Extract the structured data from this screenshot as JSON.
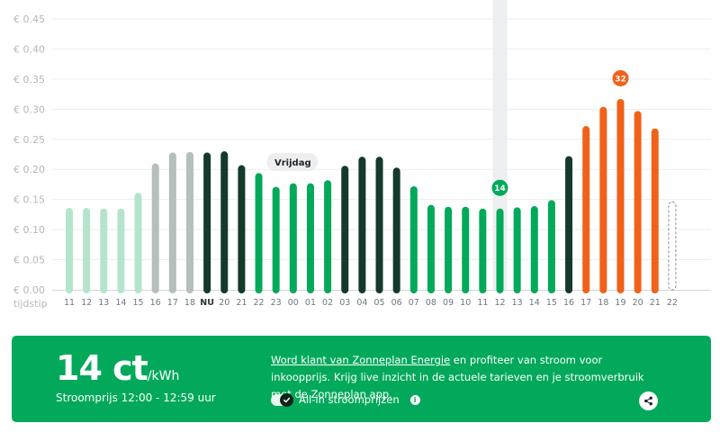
{
  "chart_data": {
    "type": "bar",
    "ylabel": "tijdstip",
    "ylim": [
      0,
      0.45
    ],
    "y_ticks": [
      "€ 0.45",
      "€ 0.40",
      "€ 0.35",
      "€ 0.30",
      "€ 0.25",
      "€ 0.20",
      "€ 0.15",
      "€ 0.10",
      "€ 0.05",
      "€ 0.00"
    ],
    "categories": [
      "11",
      "12",
      "13",
      "14",
      "15",
      "16",
      "17",
      "18",
      "NU",
      "20",
      "21",
      "22",
      "23",
      "00",
      "01",
      "02",
      "03",
      "04",
      "05",
      "06",
      "07",
      "08",
      "09",
      "10",
      "11",
      "12",
      "13",
      "14",
      "15",
      "16",
      "17",
      "18",
      "19",
      "20",
      "21",
      "22"
    ],
    "values": [
      0.136,
      0.136,
      0.135,
      0.135,
      0.161,
      0.21,
      0.228,
      0.229,
      0.228,
      0.23,
      0.207,
      0.194,
      0.171,
      0.177,
      0.177,
      0.182,
      0.206,
      0.221,
      0.221,
      0.203,
      0.172,
      0.141,
      0.138,
      0.138,
      0.135,
      0.135,
      0.137,
      0.139,
      0.149,
      0.222,
      0.272,
      0.304,
      0.317,
      0.297,
      0.268,
      0.146
    ],
    "bar_states": [
      "past",
      "past",
      "past",
      "past",
      "past",
      "past-high",
      "past-high",
      "past-high",
      "current",
      "high",
      "high",
      "normal",
      "normal",
      "normal",
      "normal",
      "normal",
      "high",
      "high",
      "high",
      "high",
      "normal",
      "normal",
      "normal",
      "normal",
      "normal",
      "selected",
      "normal",
      "normal",
      "normal",
      "high",
      "peak",
      "peak",
      "peak",
      "peak",
      "peak",
      "unknown"
    ],
    "day_marker": {
      "label": "Vrijdag",
      "category_index": 13
    },
    "selected": {
      "category_index": 25,
      "label": "14"
    },
    "peak_marker": {
      "category_index": 32,
      "label": "32"
    },
    "colors": {
      "past": "#b4e5cc",
      "past-high": "#b5bfbb",
      "current": "#143a2c",
      "high": "#143a2c",
      "normal": "#02a95a",
      "selected": "#02a95a",
      "peak": "#f06219",
      "unknown": "#ffffff",
      "highlight_band": "#eeeff0",
      "gridline": "#eceef0"
    }
  },
  "panel": {
    "price_value": "14 ct",
    "price_unit": "/kWh",
    "subtitle": "Stroomprijs 12:00 - 12:59 uur",
    "promo_link": "Word klant van Zonneplan Energie",
    "promo_rest": " en profiteer van stroom voor inkoopprijs. Krijg live inzicht in de actuele tarieven en je stroomverbruik met de Zonneplan app.",
    "toggle_label": "All-in stroomprijzen",
    "info_icon": "i"
  }
}
